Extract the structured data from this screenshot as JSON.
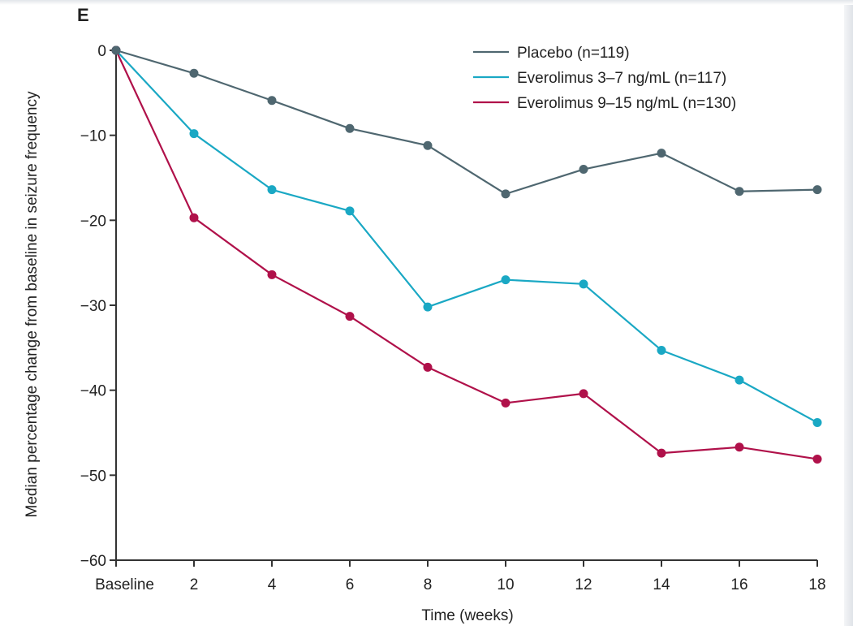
{
  "chart_data": {
    "type": "line",
    "panel_label": "E",
    "xlabel": "Time (weeks)",
    "ylabel": "Median percentage change from baseline in seizure frequency",
    "x_tick_labels": [
      "Baseline",
      "2",
      "4",
      "6",
      "8",
      "10",
      "12",
      "14",
      "16",
      "18"
    ],
    "x": [
      0,
      2,
      4,
      6,
      8,
      10,
      12,
      14,
      16,
      18
    ],
    "xlim": [
      0,
      18
    ],
    "y_ticks": [
      0,
      -10,
      -20,
      -30,
      -40,
      -50,
      -60
    ],
    "y_tick_labels": [
      "0",
      "−10",
      "−20",
      "−30",
      "−40",
      "−50",
      "−60"
    ],
    "ylim": [
      -60,
      0
    ],
    "grid": false,
    "legend_position": "top-right",
    "series": [
      {
        "name": "Placebo (n=119)",
        "color": "#4f6770",
        "values": [
          0,
          -2.7,
          -5.9,
          -9.2,
          -11.2,
          -16.9,
          -14.0,
          -12.1,
          -16.6,
          -16.4
        ]
      },
      {
        "name": "Everolimus 3–7 ng/mL (n=117)",
        "color": "#1aa8c4",
        "values": [
          0,
          -9.8,
          -16.4,
          -18.9,
          -30.2,
          -27.0,
          -27.5,
          -35.3,
          -38.8,
          -43.8
        ]
      },
      {
        "name": "Everolimus 9–15 ng/mL (n=130)",
        "color": "#b0114a",
        "values": [
          0,
          -19.7,
          -26.4,
          -31.3,
          -37.3,
          -41.5,
          -40.4,
          -47.4,
          -46.7,
          -48.1
        ]
      }
    ]
  }
}
